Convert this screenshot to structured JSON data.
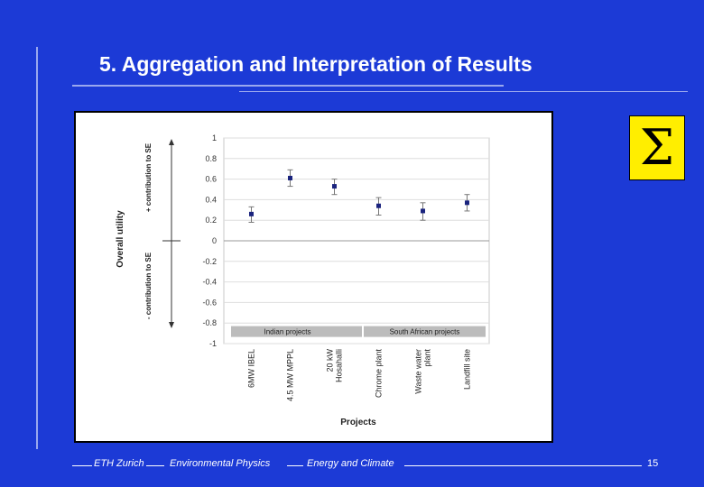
{
  "slide": {
    "title": "5. Aggregation and Interpretation of Results",
    "footer": [
      "ETH Zurich",
      "Environmental Physics",
      "Energy and Climate"
    ],
    "page_number": "15",
    "sigma_symbol": "Σ",
    "colors": {
      "background": "#1c3ad6",
      "sigma_box": "#ffee00",
      "marker": "#1a237e"
    }
  },
  "chart_data": {
    "type": "scatter",
    "xlabel": "Projects",
    "ylabel": "Overall utility",
    "ylabel_pos": "+ contribution to SE",
    "ylabel_neg": "- contribution to SE",
    "ylim": [
      -1,
      1
    ],
    "yticks": [
      "1",
      "0.8",
      "0.6",
      "0.4",
      "0.2",
      "0",
      "-0.2",
      "-0.4",
      "-0.6",
      "-0.8",
      "-1"
    ],
    "grid": true,
    "categories": [
      "6MW IBEL",
      "4.5 MW MPPL",
      "20 kW Hosahalli",
      "Chrome plant",
      "Waste water plant",
      "Landfill site"
    ],
    "values": [
      0.26,
      0.61,
      0.53,
      0.34,
      0.29,
      0.37
    ],
    "error_low": [
      0.18,
      0.53,
      0.45,
      0.25,
      0.2,
      0.29
    ],
    "error_high": [
      0.33,
      0.69,
      0.6,
      0.42,
      0.37,
      0.45
    ],
    "groups": [
      {
        "label": "Indian projects"
      },
      {
        "label": "South African projects"
      }
    ]
  }
}
